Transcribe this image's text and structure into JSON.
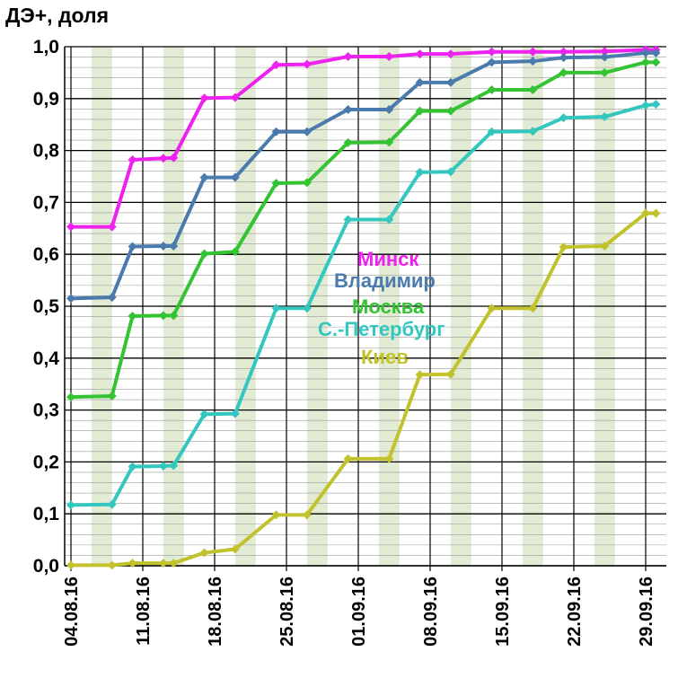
{
  "chart_data": {
    "type": "line",
    "ylabel": "ДЭ+, доля",
    "ylim": [
      0,
      1
    ],
    "y_ticks": [
      "0,0",
      "0,1",
      "0,2",
      "0,3",
      "0,4",
      "0,5",
      "0,6",
      "0,7",
      "0,8",
      "0,9",
      "1,0"
    ],
    "x_tick_labels": [
      "04.08.16",
      "11.08.16",
      "18.08.16",
      "25.08.16",
      "01.09.16",
      "08.09.16",
      "15.09.16",
      "22.09.16",
      "29.09.16"
    ],
    "x_dates": [
      "04.08",
      "08.08",
      "10.08",
      "13.08",
      "14.08",
      "17.08",
      "20.08",
      "24.08",
      "27.08",
      "31.08",
      "04.09",
      "07.09",
      "10.09",
      "14.09",
      "18.09",
      "21.09",
      "25.09",
      "29.09",
      "30.09"
    ],
    "grid": true,
    "series": [
      {
        "name": "Минск",
        "color": "#ee22ee",
        "values": [
          0.653,
          0.653,
          0.782,
          0.785,
          0.786,
          0.901,
          0.902,
          0.965,
          0.966,
          0.981,
          0.981,
          0.986,
          0.986,
          0.99,
          0.99,
          0.99,
          0.991,
          0.994,
          0.994
        ]
      },
      {
        "name": "Владимир",
        "color": "#4a7bac",
        "values": [
          0.515,
          0.517,
          0.615,
          0.616,
          0.616,
          0.748,
          0.748,
          0.836,
          0.836,
          0.879,
          0.879,
          0.931,
          0.931,
          0.97,
          0.972,
          0.979,
          0.98,
          0.988,
          0.988
        ]
      },
      {
        "name": "Москва",
        "color": "#33c333",
        "values": [
          0.325,
          0.327,
          0.481,
          0.482,
          0.482,
          0.601,
          0.605,
          0.737,
          0.738,
          0.815,
          0.816,
          0.876,
          0.876,
          0.917,
          0.917,
          0.95,
          0.95,
          0.97,
          0.97
        ]
      },
      {
        "name": "С.-Петербург",
        "color": "#33c7c0",
        "values": [
          0.117,
          0.118,
          0.191,
          0.192,
          0.193,
          0.292,
          0.293,
          0.496,
          0.496,
          0.667,
          0.667,
          0.758,
          0.759,
          0.836,
          0.837,
          0.863,
          0.865,
          0.887,
          0.889
        ]
      },
      {
        "name": "Киев",
        "color": "#c2c22c",
        "values": [
          0.001,
          0.001,
          0.005,
          0.005,
          0.005,
          0.025,
          0.032,
          0.098,
          0.098,
          0.206,
          0.206,
          0.368,
          0.369,
          0.496,
          0.496,
          0.614,
          0.616,
          0.679,
          0.679
        ]
      }
    ],
    "legend": {
      "placement": "center",
      "entries": [
        "Минск",
        "Владимир",
        "Москва",
        "С.-Петербург",
        "Киев"
      ]
    }
  }
}
